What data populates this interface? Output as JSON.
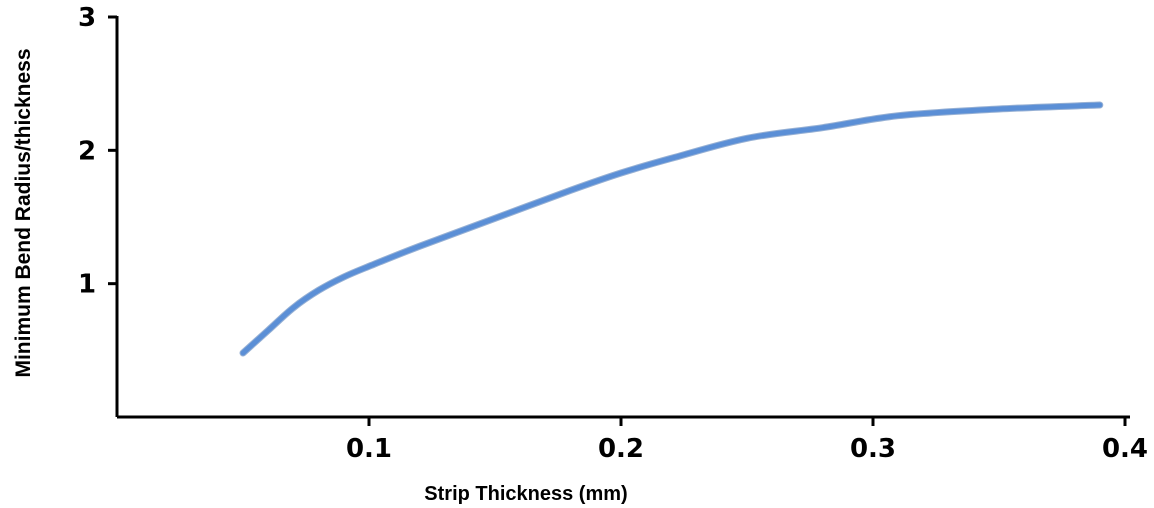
{
  "chart_data": {
    "type": "line",
    "title": "",
    "xlabel": "Strip Thickness (mm)",
    "ylabel": "Minimum Bend Radius/thickness",
    "xlim": [
      0,
      0.4
    ],
    "ylim": [
      0,
      3
    ],
    "xticks": [
      0.1,
      0.2,
      0.3,
      0.4
    ],
    "xtick_labels": [
      "0.1",
      "0.2",
      "0.3",
      "0.4"
    ],
    "yticks": [
      1,
      2,
      3
    ],
    "ytick_labels": [
      "1",
      "2",
      "3"
    ],
    "grid": false,
    "legend": "none",
    "series": [
      {
        "color": "#5b8fd6",
        "x": [
          0.05,
          0.06,
          0.07,
          0.08,
          0.09,
          0.1,
          0.12,
          0.15,
          0.18,
          0.2,
          0.22,
          0.25,
          0.28,
          0.31,
          0.35,
          0.39
        ],
        "y": [
          0.48,
          0.65,
          0.82,
          0.95,
          1.05,
          1.13,
          1.28,
          1.49,
          1.7,
          1.83,
          1.94,
          2.09,
          2.17,
          2.26,
          2.31,
          2.34
        ]
      }
    ]
  }
}
